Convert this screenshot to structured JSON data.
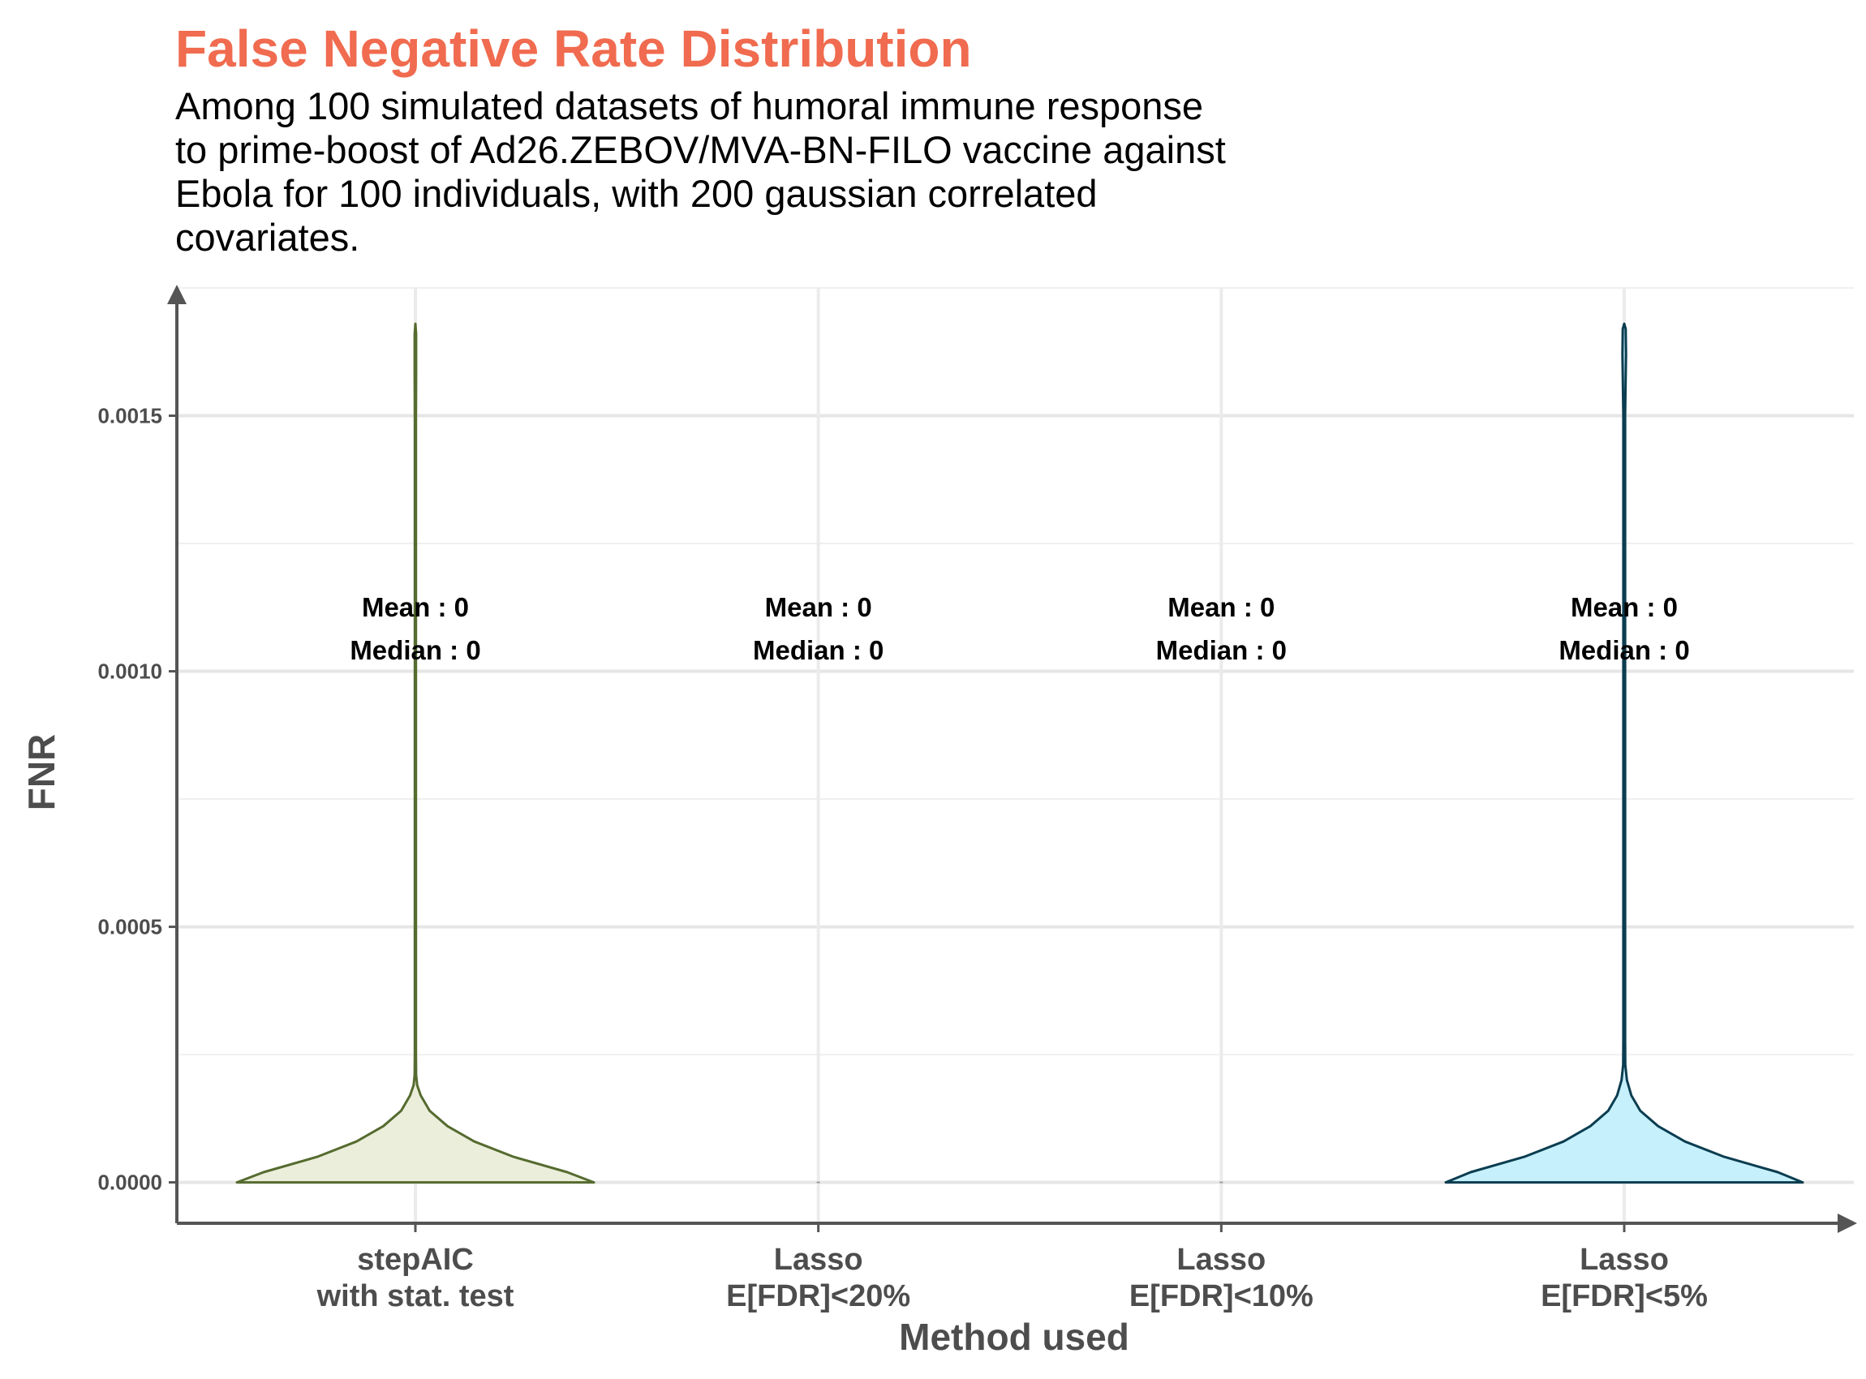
{
  "chart_data": {
    "type": "violin",
    "title": "False Negative Rate Distribution",
    "subtitle_lines": [
      "Among 100 simulated datasets of humoral immune response",
      "to prime-boost of Ad26.ZEBOV/MVA-BN-FILO vaccine against",
      "Ebola for 100 individuals, with 200 gaussian correlated",
      "covariates."
    ],
    "xlabel": "Method used",
    "ylabel": "FNR",
    "ylim": [
      -8e-05,
      0.00175
    ],
    "y_ticks": [
      0,
      0.0005,
      0.001,
      0.0015
    ],
    "y_tick_labels": [
      "0.0000",
      "0.0005",
      "0.0010",
      "0.0015"
    ],
    "y_minor_ticks": [
      0.00025,
      0.00075,
      0.00125,
      0.00175
    ],
    "grid": true,
    "categories": [
      {
        "label_lines": [
          "stepAIC",
          "with stat. test"
        ],
        "mean_text": "Mean : 0",
        "median_text": "Median : 0",
        "fill": "#EBEEDB",
        "stroke": "#556B2F",
        "max_value": 0.00168,
        "density_profile": [
          [
            0,
            1.0
          ],
          [
            2e-05,
            0.85
          ],
          [
            5e-05,
            0.55
          ],
          [
            8e-05,
            0.33
          ],
          [
            0.00011,
            0.18
          ],
          [
            0.00014,
            0.08
          ],
          [
            0.00017,
            0.03
          ],
          [
            0.00019,
            0.01
          ],
          [
            0.00021,
            0.004
          ],
          [
            0.00025,
            0.003
          ],
          [
            0.0008,
            0.003
          ],
          [
            0.0015,
            0.003
          ],
          [
            0.00158,
            0.004
          ],
          [
            0.00166,
            0.004
          ],
          [
            0.00168,
            0
          ]
        ]
      },
      {
        "label_lines": [
          "Lasso",
          "E[FDR]<20%"
        ],
        "mean_text": "Mean : 0",
        "median_text": "Median : 0",
        "fill": "#ffffff",
        "stroke": "#9a9a9a",
        "max_value": 0,
        "density_profile": []
      },
      {
        "label_lines": [
          "Lasso",
          "E[FDR]<10%"
        ],
        "mean_text": "Mean : 0",
        "median_text": "Median : 0",
        "fill": "#ffffff",
        "stroke": "#9a9a9a",
        "max_value": 0,
        "density_profile": []
      },
      {
        "label_lines": [
          "Lasso",
          "E[FDR]<5%"
        ],
        "mean_text": "Mean : 0",
        "median_text": "Median : 0",
        "fill": "#C6F0FC",
        "stroke": "#0B3D50",
        "max_value": 0.00168,
        "density_profile": [
          [
            0,
            1.0
          ],
          [
            2e-05,
            0.86
          ],
          [
            5e-05,
            0.56
          ],
          [
            8e-05,
            0.34
          ],
          [
            0.00011,
            0.19
          ],
          [
            0.00014,
            0.09
          ],
          [
            0.00017,
            0.04
          ],
          [
            0.0002,
            0.015
          ],
          [
            0.00023,
            0.006
          ],
          [
            0.00028,
            0.005
          ],
          [
            0.0008,
            0.005
          ],
          [
            0.0015,
            0.005
          ],
          [
            0.00162,
            0.01
          ],
          [
            0.00167,
            0.008
          ],
          [
            0.00168,
            0
          ]
        ]
      }
    ]
  }
}
